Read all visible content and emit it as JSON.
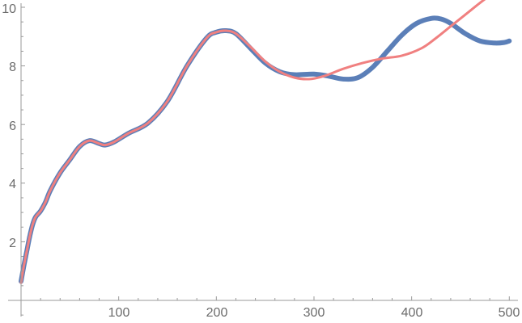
{
  "chart_data": {
    "type": "line",
    "title": "",
    "xlabel": "",
    "ylabel": "",
    "xlim": [
      0,
      510
    ],
    "ylim": [
      0,
      10
    ],
    "grid": false,
    "legend": null,
    "x_ticks": [
      100,
      200,
      300,
      400,
      500
    ],
    "x_tick_labels": [
      "100",
      "200",
      "300",
      "400",
      "500"
    ],
    "y_ticks": [
      2,
      4,
      6,
      8,
      10
    ],
    "y_tick_labels": [
      "2",
      "4",
      "6",
      "8",
      "10"
    ],
    "series": [
      {
        "name": "data",
        "color": "#5b7fb8",
        "width": 6,
        "x": [
          0,
          3,
          6,
          9,
          12,
          15,
          20,
          25,
          30,
          40,
          50,
          60,
          70,
          80,
          86,
          95,
          110,
          130,
          150,
          170,
          190,
          200,
          210,
          220,
          235,
          250,
          265,
          280,
          300,
          315,
          330,
          345,
          360,
          375,
          390,
          405,
          420,
          430,
          440,
          455,
          470,
          485,
          495,
          500
        ],
        "y": [
          0.65,
          1.2,
          1.7,
          2.2,
          2.6,
          2.85,
          3.05,
          3.35,
          3.75,
          4.35,
          4.8,
          5.25,
          5.45,
          5.35,
          5.3,
          5.4,
          5.7,
          6.05,
          6.8,
          8.0,
          8.95,
          9.15,
          9.2,
          9.1,
          8.6,
          8.1,
          7.8,
          7.7,
          7.72,
          7.65,
          7.55,
          7.6,
          7.95,
          8.5,
          9.05,
          9.45,
          9.62,
          9.6,
          9.45,
          9.1,
          8.85,
          8.78,
          8.8,
          8.85
        ]
      },
      {
        "name": "fit",
        "color": "#f08080",
        "width": 3,
        "x": [
          0,
          3,
          6,
          9,
          12,
          15,
          20,
          25,
          30,
          40,
          50,
          60,
          70,
          80,
          86,
          95,
          110,
          130,
          150,
          170,
          190,
          200,
          210,
          220,
          235,
          250,
          265,
          280,
          295,
          310,
          330,
          350,
          370,
          390,
          410,
          425,
          440,
          455,
          470,
          480
        ],
        "y": [
          0.6,
          1.2,
          1.7,
          2.2,
          2.6,
          2.85,
          3.05,
          3.35,
          3.75,
          4.35,
          4.8,
          5.25,
          5.45,
          5.35,
          5.3,
          5.4,
          5.7,
          6.05,
          6.8,
          8.0,
          8.95,
          9.15,
          9.2,
          9.1,
          8.65,
          8.15,
          7.8,
          7.6,
          7.55,
          7.65,
          7.9,
          8.1,
          8.25,
          8.35,
          8.6,
          8.95,
          9.35,
          9.75,
          10.15,
          10.4
        ]
      }
    ]
  }
}
